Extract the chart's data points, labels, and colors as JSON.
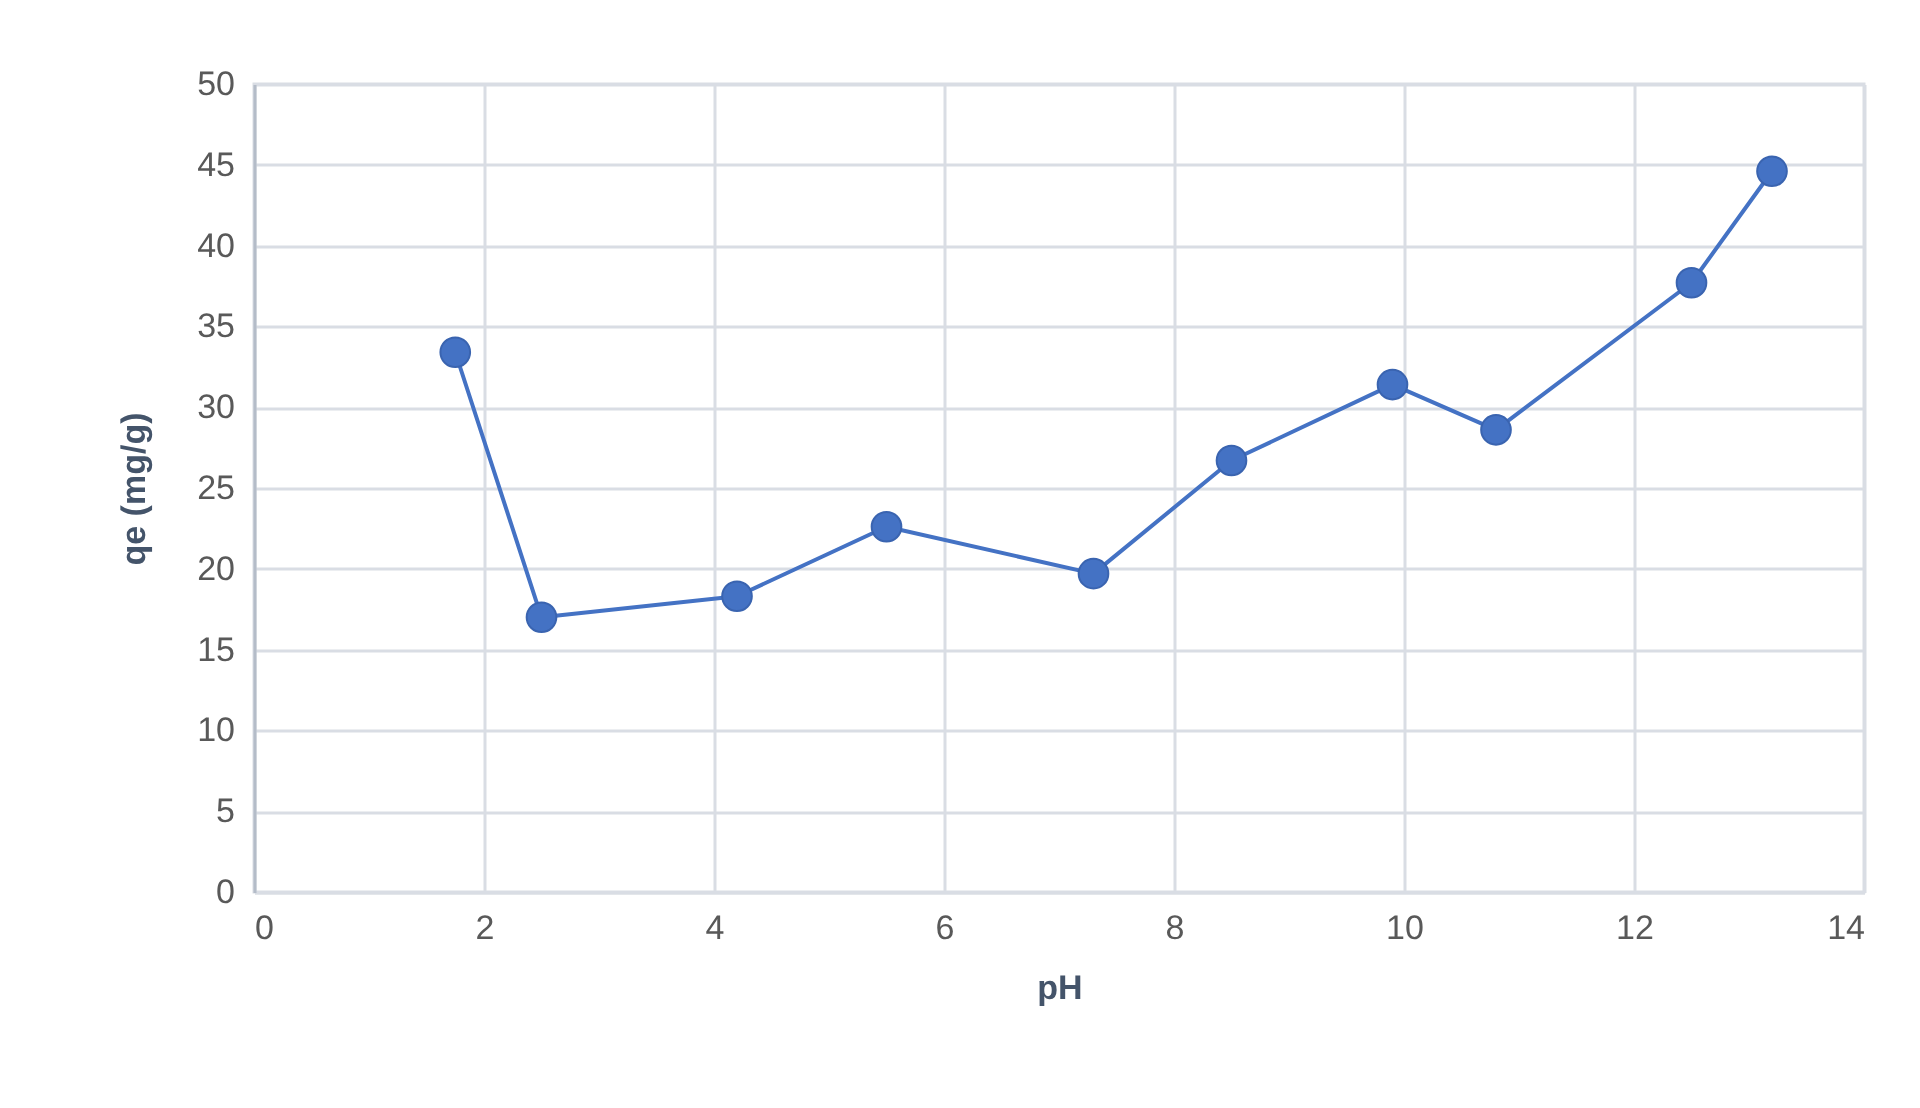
{
  "chart_data": {
    "type": "line",
    "xlabel": "pH",
    "ylabel": "qe (mg/g)",
    "x": [
      1.75,
      2.5,
      4.2,
      5.5,
      7.3,
      8.5,
      9.9,
      10.8,
      12.5,
      13.2
    ],
    "series": [
      {
        "color": "#4472c4",
        "values": [
          33.4,
          17.0,
          18.3,
          22.6,
          19.7,
          26.7,
          31.4,
          28.6,
          37.7,
          44.6
        ]
      }
    ],
    "xlim": [
      0,
      14
    ],
    "ylim": [
      0,
      50
    ],
    "xticks": [
      0,
      2,
      4,
      6,
      8,
      10,
      12,
      14
    ],
    "yticks": [
      0,
      5,
      10,
      15,
      20,
      25,
      30,
      35,
      40,
      45,
      50
    ],
    "grid": true,
    "marker": "circle",
    "line_style": "solid"
  }
}
